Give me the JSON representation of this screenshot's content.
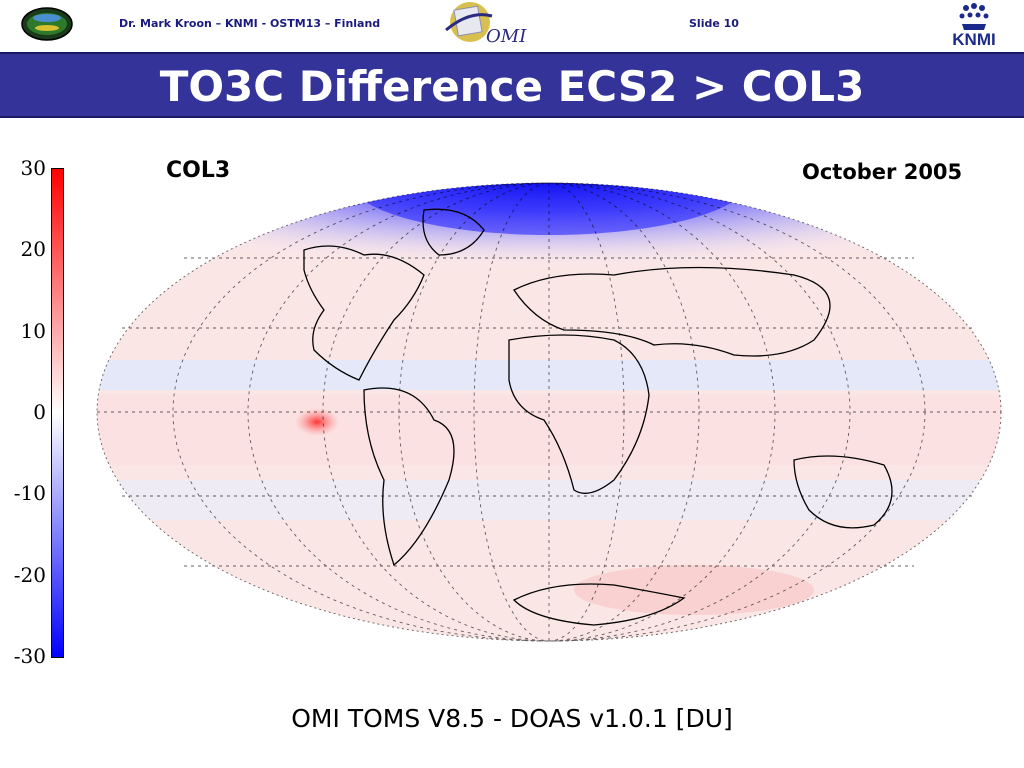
{
  "header": {
    "author_text": "Dr. Mark Kroon – KNMI - OSTM13 – Finland",
    "slide_text": "Slide 10",
    "omi_logo_text": "OMI",
    "knmi_logo_text": "KNMI"
  },
  "slide": {
    "title": "TO3C Difference ECS2 > COL3"
  },
  "chart_data": {
    "type": "heatmap",
    "title": "TO3C Difference ECS2 > COL3",
    "projection": "hammer-aitoff (global map)",
    "dataset_label": "COL3",
    "date_label": "October 2005",
    "colorbar": {
      "ticks": [
        30,
        20,
        10,
        0,
        -10,
        -20,
        -30
      ],
      "range": [
        -30,
        30
      ],
      "colormap": "blue-white-red",
      "color_min": "#0000ff",
      "color_mid": "#ffffff",
      "color_max": "#ff0000"
    },
    "caption": "OMI TOMS V8.5 - DOAS v1.0.1 [DU]",
    "grid": true
  }
}
